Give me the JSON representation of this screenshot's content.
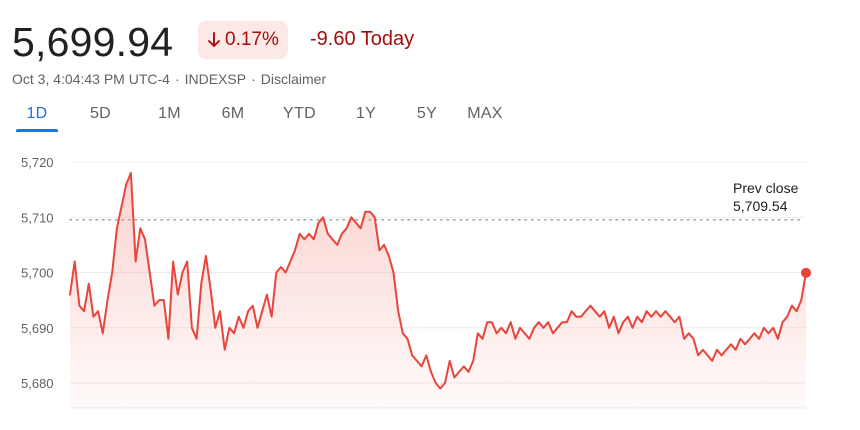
{
  "quote": {
    "price": "5,699.94",
    "percent_change": "0.17%",
    "direction_icon": "arrow-down-icon",
    "change_today": "-9.60 Today",
    "timestamp": "Oct 3, 4:04:43 PM UTC-4",
    "exchange": "INDEXSP",
    "disclaimer_label": "Disclaimer"
  },
  "ranges": [
    {
      "label": "1D",
      "selected": true
    },
    {
      "label": "5D",
      "selected": false
    },
    {
      "label": "1M",
      "selected": false
    },
    {
      "label": "6M",
      "selected": false
    },
    {
      "label": "YTD",
      "selected": false
    },
    {
      "label": "1Y",
      "selected": false
    },
    {
      "label": "5Y",
      "selected": false
    },
    {
      "label": "MAX",
      "selected": false
    }
  ],
  "colors": {
    "negative": "#a50e0e",
    "badge_bg": "#fce8e6",
    "line": "#e8453c",
    "accent": "#1a73e8"
  },
  "chart_data": {
    "type": "area",
    "ylim": [
      5677,
      5722
    ],
    "yticks": [
      5720,
      5710,
      5700,
      5690,
      5680
    ],
    "ytick_labels": [
      "5,720",
      "5,710",
      "5,700",
      "5,690",
      "5,680"
    ],
    "grid": true,
    "prev_close": {
      "label": "Prev close",
      "value": 5709.54,
      "value_label": "5,709.54"
    },
    "x_interval_minutes": 2,
    "x_total_minutes": 390,
    "values": [
      5696,
      5702,
      5694,
      5693,
      5698,
      5692,
      5693,
      5689,
      5695,
      5700,
      5708,
      5712,
      5716,
      5718,
      5702,
      5708,
      5706,
      5700,
      5694,
      5695,
      5695,
      5688,
      5702,
      5696,
      5700,
      5702,
      5690,
      5688,
      5698,
      5703,
      5697,
      5690,
      5693,
      5686,
      5690,
      5689,
      5692,
      5690,
      5693,
      5694,
      5690,
      5693,
      5696,
      5692,
      5700,
      5701,
      5700,
      5702,
      5704,
      5707,
      5706,
      5707,
      5706,
      5709,
      5710,
      5707,
      5706,
      5705,
      5707,
      5708,
      5710,
      5709,
      5708,
      5711,
      5711,
      5710,
      5704,
      5705,
      5703,
      5700,
      5693,
      5689,
      5688,
      5685,
      5684,
      5683,
      5685,
      5682,
      5680,
      5679,
      5680,
      5684,
      5681,
      5682,
      5683,
      5682,
      5684,
      5689,
      5688,
      5691,
      5691,
      5689,
      5690,
      5689,
      5691,
      5688,
      5690,
      5689,
      5688,
      5690,
      5691,
      5690,
      5691,
      5689,
      5690,
      5691,
      5691,
      5693,
      5692,
      5692,
      5693,
      5694,
      5693,
      5692,
      5693,
      5690,
      5692,
      5689,
      5691,
      5692,
      5690,
      5692,
      5691,
      5693,
      5692,
      5693,
      5692,
      5693,
      5692,
      5691,
      5692,
      5688,
      5689,
      5688,
      5685,
      5686,
      5685,
      5684,
      5686,
      5685,
      5686,
      5687,
      5686,
      5688,
      5687,
      5688,
      5689,
      5688,
      5690,
      5689,
      5690,
      5688,
      5691,
      5692,
      5694,
      5693,
      5695,
      5700
    ],
    "last_value": 5699.94
  }
}
